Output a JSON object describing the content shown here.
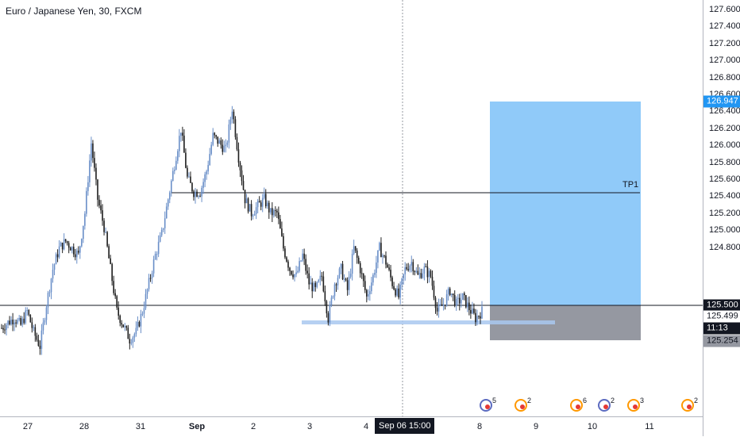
{
  "window": {
    "title": "Euro / Japanese Yen, 30, FXCM"
  },
  "axes": {
    "y_ticks": [
      "127.600",
      "127.400",
      "127.200",
      "127.000",
      "126.800",
      "126.600",
      "126.400",
      "126.200",
      "126.000",
      "125.800",
      "125.600",
      "125.400",
      "125.200",
      "125.000",
      "124.800"
    ],
    "x_ticks": [
      {
        "label": "27",
        "bold": false
      },
      {
        "label": "28",
        "bold": false
      },
      {
        "label": "31",
        "bold": false
      },
      {
        "label": "Sep",
        "bold": true
      },
      {
        "label": "2",
        "bold": false
      },
      {
        "label": "3",
        "bold": false
      },
      {
        "label": "4",
        "bold": false
      },
      {
        "label": "8",
        "bold": false
      },
      {
        "label": "9",
        "bold": false
      },
      {
        "label": "10",
        "bold": false
      },
      {
        "label": "11",
        "bold": false
      }
    ],
    "crosshair_time": "Sep 06   15:00"
  },
  "price_badges": {
    "target": "126.947",
    "current": "125.500",
    "crosshair": "125.499",
    "countdown": "11:13",
    "stop": "125.254"
  },
  "annotations": {
    "tp_label": "TP1"
  },
  "events": [
    {
      "count": "5",
      "kind": "flag"
    },
    {
      "count": "2",
      "kind": "dot"
    },
    {
      "count": "6",
      "kind": "dot"
    },
    {
      "count": "2",
      "kind": "flag"
    },
    {
      "count": "3",
      "kind": "dot"
    },
    {
      "count": "2",
      "kind": "dot"
    }
  ],
  "colors": {
    "up_candle": "#6a8fc8",
    "down_candle": "#1e1e1e",
    "target_zone": "#90caf9",
    "stop_zone": "#9598a1",
    "support_zone": "#a9c8f0",
    "badge_blue": "#2196f3",
    "badge_dark": "#131722"
  },
  "chart_data": {
    "type": "candlestick",
    "title": "Euro / Japanese Yen, 30, FXCM",
    "ylim": [
      124.75,
      127.72
    ],
    "close_series": [
      125.38,
      125.42,
      125.45,
      125.4,
      125.5,
      125.35,
      125.25,
      125.55,
      125.8,
      125.95,
      126.0,
      125.95,
      125.9,
      126.2,
      126.7,
      126.3,
      126.1,
      125.8,
      125.5,
      125.4,
      125.3,
      125.35,
      125.5,
      125.7,
      125.9,
      126.05,
      126.3,
      126.55,
      126.8,
      126.45,
      126.35,
      126.35,
      126.5,
      126.75,
      126.7,
      126.65,
      126.95,
      126.6,
      126.3,
      126.2,
      126.25,
      126.3,
      126.2,
      126.2,
      125.95,
      125.8,
      125.75,
      125.9,
      125.7,
      125.65,
      125.75,
      125.45,
      125.7,
      125.8,
      125.65,
      125.95,
      125.8,
      125.6,
      125.75,
      125.95,
      125.85,
      125.7,
      125.6,
      125.8,
      125.85,
      125.75,
      125.8,
      125.75,
      125.5,
      125.55,
      125.65,
      125.55,
      125.6,
      125.52,
      125.45,
      125.5
    ]
  }
}
